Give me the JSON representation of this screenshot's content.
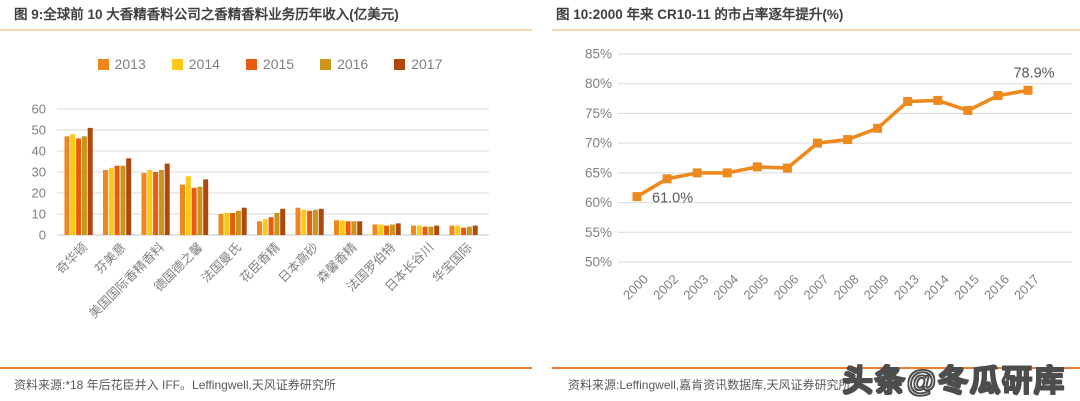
{
  "watermark": {
    "text": "头条@冬瓜研库"
  },
  "left_panel": {
    "source_note": "资料来源:*18 年后花臣并入 IFF。Leffingwell,天风证券研究所"
  },
  "right_panel": {
    "source_note": "资料来源:Leffingwell,嘉肯资讯数据库,天风证券研究所"
  },
  "chart_data": [
    {
      "type": "bar",
      "title": "图 9:全球前 10 大香精香料公司之香精香料业务历年收入(亿美元)",
      "categories": [
        "奇华顿",
        "芬美意",
        "美国国际香精香料",
        "德国德之馨",
        "法国曼氏",
        "花臣香精",
        "日本高砂",
        "森馨香精",
        "法国罗伯特",
        "日本长谷川",
        "华宝国际"
      ],
      "series": [
        {
          "name": "2013",
          "color": "#F0861E",
          "values": [
            47,
            31,
            29.5,
            24,
            10,
            6.5,
            13,
            7,
            5,
            4.5,
            4.5
          ]
        },
        {
          "name": "2014",
          "color": "#FFC814",
          "values": [
            48,
            32,
            31,
            28,
            10.5,
            7.5,
            12,
            7,
            5,
            4.5,
            4.5
          ]
        },
        {
          "name": "2015",
          "color": "#E85C10",
          "values": [
            46,
            33,
            30,
            22.5,
            10.5,
            8.5,
            11.5,
            6.5,
            4.5,
            4,
            3.5
          ]
        },
        {
          "name": "2016",
          "color": "#C9951A",
          "values": [
            47,
            33,
            31,
            23,
            11.5,
            10.5,
            12,
            6.5,
            5,
            4,
            4
          ]
        },
        {
          "name": "2017",
          "color": "#AE480C",
          "values": [
            51,
            36.5,
            34,
            26.5,
            13,
            12.5,
            12.5,
            6.5,
            5.5,
            4.5,
            4.5
          ]
        }
      ],
      "ylim": [
        0,
        60
      ],
      "ytick_step": 10,
      "grid": true,
      "legend_position": "top"
    },
    {
      "type": "line",
      "title": "图 10:2000 年来 CR10-11 的市占率逐年提升(%)",
      "x": [
        "2000",
        "2002",
        "2003",
        "2004",
        "2005",
        "2006",
        "2007",
        "2008",
        "2009",
        "2013",
        "2014",
        "2015",
        "2016",
        "2017"
      ],
      "values": [
        61.0,
        64.0,
        65.0,
        65.0,
        66.0,
        65.8,
        70.0,
        70.6,
        72.5,
        77.0,
        77.2,
        75.5,
        78.0,
        78.9
      ],
      "color": "#EC8A1E",
      "marker": "square",
      "ylim": [
        50,
        85
      ],
      "ytick_step": 5,
      "ytick_suffix": "%",
      "grid": true,
      "annotations": [
        {
          "x_index": 0,
          "text": "61.0%",
          "position": "right"
        },
        {
          "x_index": 13,
          "text": "78.9%",
          "position": "above"
        }
      ]
    }
  ]
}
